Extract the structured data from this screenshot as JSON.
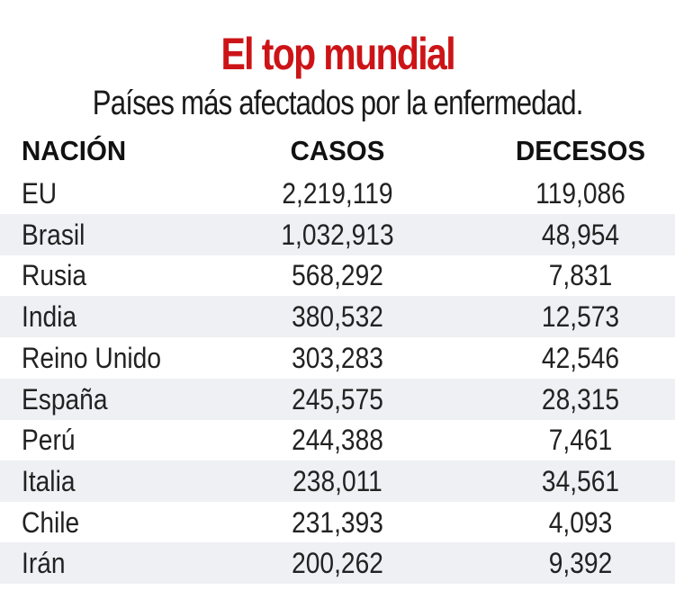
{
  "title": "El top mundial",
  "subtitle": "Países más afectados por la enfermedad.",
  "colors": {
    "title": "#cc1417",
    "stripe": "#eef0f3"
  },
  "chart_data": {
    "type": "table",
    "columns": [
      "NACIÓN",
      "CASOS",
      "DECESOS"
    ],
    "rows": [
      [
        "EU",
        "2,219,119",
        "119,086"
      ],
      [
        "Brasil",
        "1,032,913",
        "48,954"
      ],
      [
        "Rusia",
        "568,292",
        "7,831"
      ],
      [
        "India",
        "380,532",
        "12,573"
      ],
      [
        "Reino Unido",
        "303,283",
        "42,546"
      ],
      [
        "España",
        "245,575",
        "28,315"
      ],
      [
        "Perú",
        "244,388",
        "7,461"
      ],
      [
        "Italia",
        "238,011",
        "34,561"
      ],
      [
        "Chile",
        "231,393",
        "4,093"
      ],
      [
        "Irán",
        "200,262",
        "9,392"
      ]
    ]
  }
}
